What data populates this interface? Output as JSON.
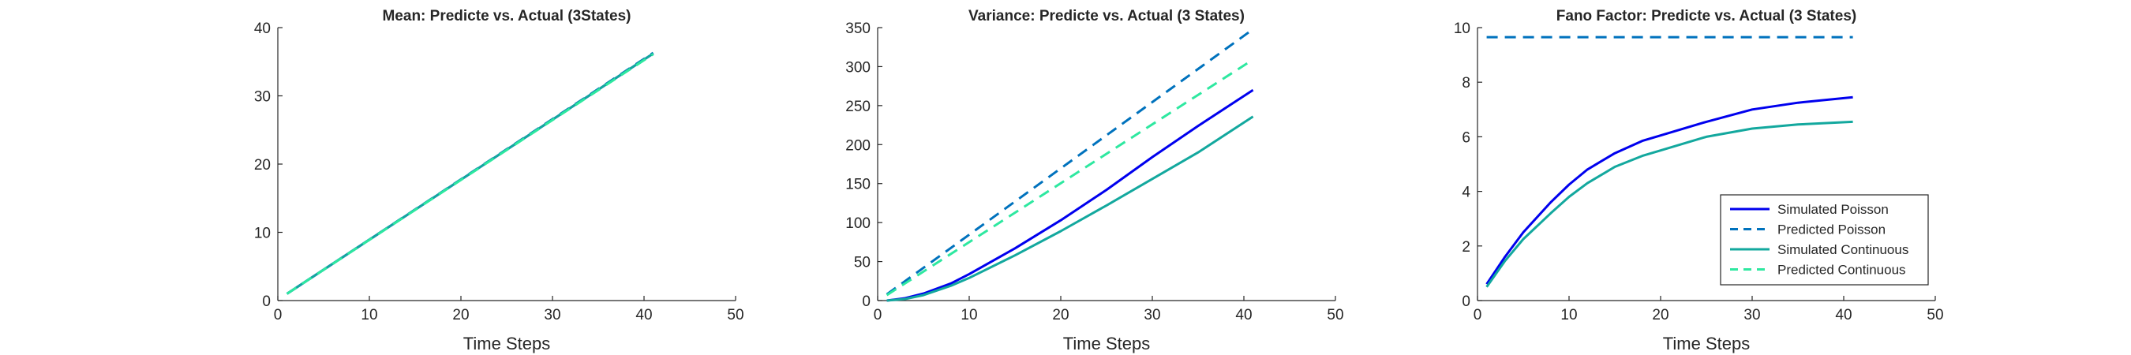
{
  "chart_data": [
    {
      "type": "line",
      "title": "Mean: Predicte vs. Actual (3States)",
      "xlabel": "Time Steps",
      "ylabel": "",
      "xlim": [
        0,
        50
      ],
      "ylim": [
        0,
        40
      ],
      "xticks": [
        0,
        10,
        20,
        30,
        40,
        50
      ],
      "yticks": [
        0,
        10,
        20,
        30,
        40
      ],
      "grid": false,
      "series": [
        {
          "color": "#0000ee",
          "dash": false,
          "x": [
            1,
            41
          ],
          "y": [
            1,
            36.2
          ]
        },
        {
          "color": "#0072bd",
          "dash": true,
          "x": [
            1,
            41
          ],
          "y": [
            1,
            36.3
          ]
        },
        {
          "color": "#13a89e",
          "dash": false,
          "x": [
            1,
            41
          ],
          "y": [
            1,
            36.2
          ]
        },
        {
          "color": "#2ee8a0",
          "dash": true,
          "x": [
            1,
            41
          ],
          "y": [
            1,
            36.1
          ]
        }
      ]
    },
    {
      "type": "line",
      "title": "Variance: Predicte vs. Actual (3 States)",
      "xlabel": "Time Steps",
      "ylabel": "",
      "xlim": [
        0,
        50
      ],
      "ylim": [
        0,
        350
      ],
      "xticks": [
        0,
        10,
        20,
        30,
        40,
        50
      ],
      "yticks": [
        0,
        50,
        100,
        150,
        200,
        250,
        300,
        350
      ],
      "grid": false,
      "series": [
        {
          "color": "#0000ee",
          "dash": false,
          "x": [
            1,
            3,
            5,
            8,
            10,
            15,
            20,
            25,
            30,
            35,
            41
          ],
          "y": [
            0,
            3,
            9,
            22,
            34,
            67,
            103,
            142,
            184,
            224,
            270
          ]
        },
        {
          "color": "#0072bd",
          "dash": true,
          "x": [
            1,
            41
          ],
          "y": [
            8,
            348
          ]
        },
        {
          "color": "#13a89e",
          "dash": false,
          "x": [
            1,
            3,
            5,
            8,
            10,
            15,
            20,
            25,
            30,
            35,
            41
          ],
          "y": [
            0,
            2,
            7,
            19,
            29,
            58,
            89,
            122,
            156,
            190,
            236
          ]
        },
        {
          "color": "#2ee8a0",
          "dash": true,
          "x": [
            1,
            41
          ],
          "y": [
            7,
            309
          ]
        }
      ]
    },
    {
      "type": "line",
      "title": "Fano Factor: Predicte vs. Actual (3 States)",
      "xlabel": "Time Steps",
      "ylabel": "",
      "xlim": [
        0,
        50
      ],
      "ylim": [
        0,
        10
      ],
      "xticks": [
        0,
        10,
        20,
        30,
        40,
        50
      ],
      "yticks": [
        0,
        2,
        4,
        6,
        8,
        10
      ],
      "grid": false,
      "legend_position": "bottom-right",
      "series": [
        {
          "name": "Simulated Poisson",
          "color": "#0000ee",
          "dash": false,
          "x": [
            1,
            3,
            5,
            8,
            10,
            12,
            15,
            18,
            20,
            25,
            30,
            35,
            41
          ],
          "y": [
            0.6,
            1.6,
            2.5,
            3.6,
            4.25,
            4.8,
            5.4,
            5.85,
            6.05,
            6.55,
            7.0,
            7.25,
            7.45
          ]
        },
        {
          "name": "Predicted Poisson",
          "color": "#0072bd",
          "dash": true,
          "x": [
            1,
            41
          ],
          "y": [
            9.65,
            9.65
          ]
        },
        {
          "name": "Simulated Continuous",
          "color": "#13a89e",
          "dash": false,
          "x": [
            1,
            3,
            5,
            8,
            10,
            12,
            15,
            18,
            20,
            25,
            30,
            35,
            41
          ],
          "y": [
            0.5,
            1.45,
            2.25,
            3.2,
            3.8,
            4.3,
            4.9,
            5.3,
            5.5,
            6.0,
            6.3,
            6.45,
            6.55
          ]
        },
        {
          "name": "Predicted Continuous",
          "color": "#2ee8a0",
          "dash": true,
          "x": [],
          "y": []
        }
      ]
    }
  ]
}
